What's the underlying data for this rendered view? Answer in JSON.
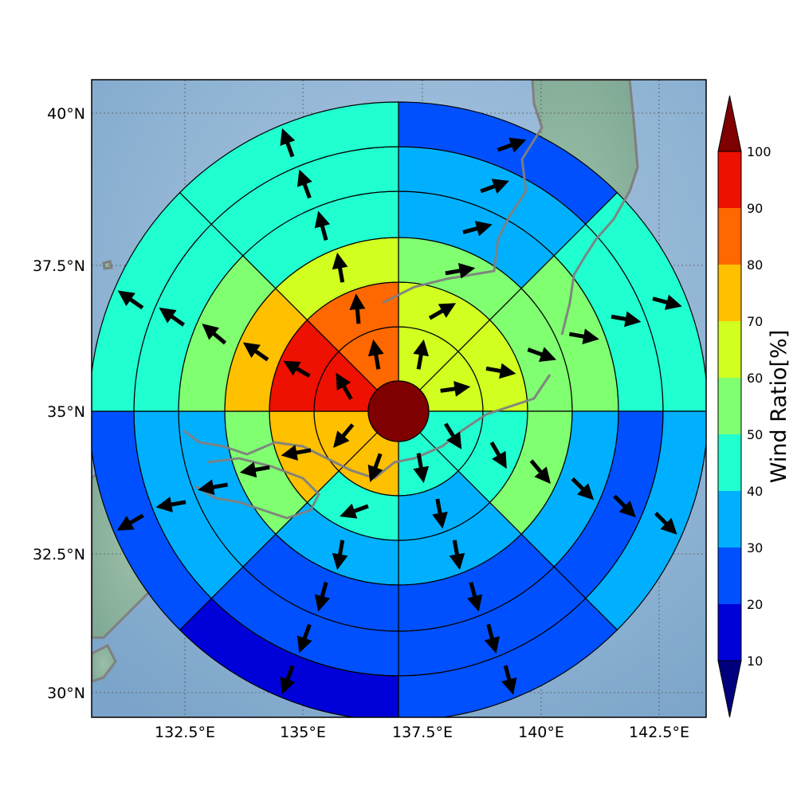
{
  "map": {
    "x_ticks": [
      "132.5°E",
      "135°E",
      "137.5°E",
      "140°E",
      "142.5°E"
    ],
    "x_tick_lons": [
      132.5,
      135,
      137.5,
      140,
      142.5
    ],
    "y_ticks": [
      "40°N",
      "37.5°N",
      "35°N",
      "32.5°N",
      "30°N"
    ],
    "y_tick_lats": [
      40,
      37.5,
      35,
      32.5,
      30
    ],
    "extent": {
      "lon_min": 130.6,
      "lon_max": 143.5,
      "lat_min": 29.6,
      "lat_max": 40.6
    },
    "center": {
      "lon": 137.0,
      "lat": 35.0
    },
    "ocean_color": "#94b8d6",
    "land_color": "#8ab3a0",
    "coast_color": "#808080"
  },
  "colorbar": {
    "label": "Wind Ratio[%]",
    "ticks": [
      "100",
      "90",
      "80",
      "70",
      "60",
      "50",
      "40",
      "30",
      "20",
      "10"
    ],
    "levels": [
      10,
      20,
      30,
      40,
      50,
      60,
      70,
      80,
      90,
      100
    ],
    "colors": [
      "#0000d8",
      "#0050ff",
      "#00b0ff",
      "#20ffd0",
      "#80ff70",
      "#d0ff20",
      "#ffc000",
      "#ff6800",
      "#ee1000"
    ],
    "under_color": "#00007f",
    "over_color": "#7f0000"
  },
  "chart_data": {
    "type": "polar-sector-map",
    "description_of_variable": "Wind Ratio[%]",
    "center_value": 100,
    "ring_count": 6,
    "sector_count": 8,
    "sector_order": "clockwise from north; sector 0 = N to NE",
    "rings": [
      {
        "values": [
          65,
          65,
          45,
          45,
          75,
          75,
          95,
          85
        ],
        "arrows": [
          10,
          82,
          148,
          170,
          200,
          220,
          330,
          350
        ]
      },
      {
        "values": [
          65,
          65,
          45,
          35,
          45,
          75,
          95,
          85
        ],
        "arrows": [
          60,
          100,
          150,
          170,
          250,
          260,
          300,
          355
        ]
      },
      {
        "values": [
          55,
          55,
          55,
          35,
          35,
          55,
          75,
          65
        ],
        "arrows": [
          80,
          110,
          140,
          170,
          190,
          260,
          305,
          350
        ]
      },
      {
        "values": [
          35,
          55,
          35,
          25,
          25,
          35,
          55,
          45
        ],
        "arrows": [
          75,
          100,
          135,
          165,
          195,
          260,
          310,
          345
        ]
      },
      {
        "values": [
          35,
          45,
          25,
          25,
          25,
          35,
          45,
          45
        ],
        "arrows": [
          70,
          100,
          135,
          165,
          200,
          260,
          305,
          340
        ]
      },
      {
        "values": [
          25,
          45,
          35,
          25,
          15,
          25,
          45,
          45
        ],
        "arrows": [
          70,
          105,
          135,
          165,
          200,
          240,
          305,
          340
        ]
      }
    ]
  }
}
